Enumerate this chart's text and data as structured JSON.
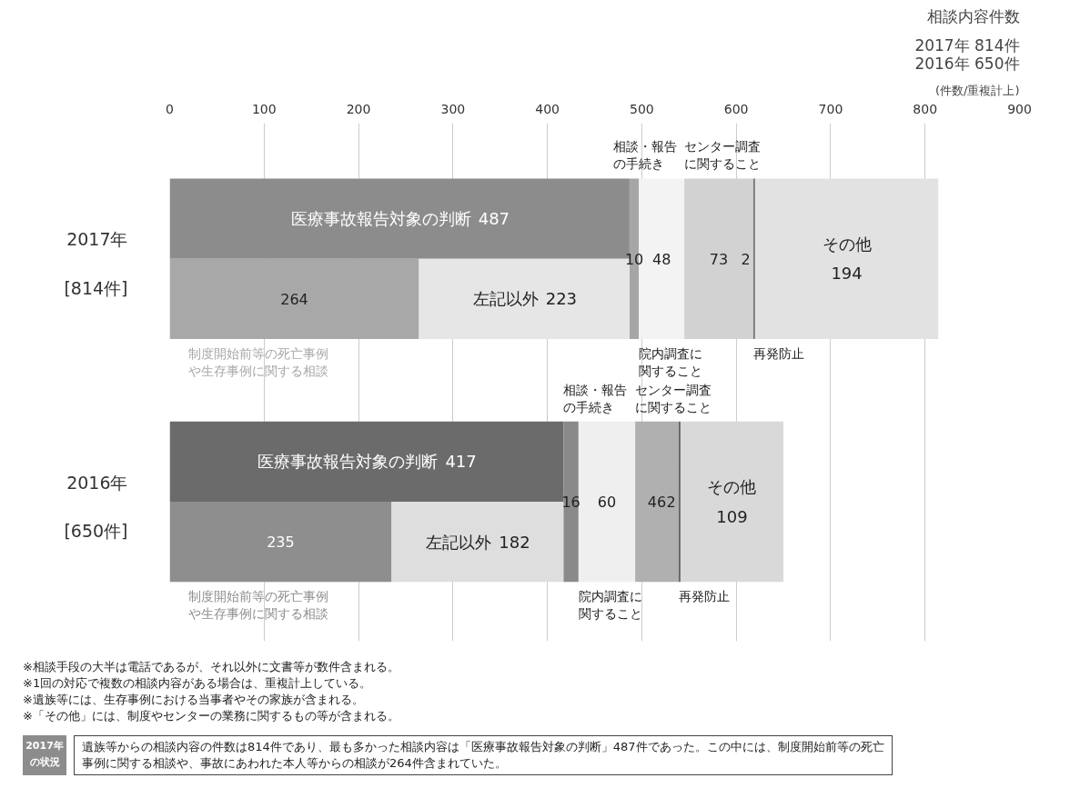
{
  "chart_data": {
    "type": "bar",
    "orientation": "horizontal",
    "title": "相談内容件数",
    "subtitle": "2017年 814件\n2016年 650件",
    "xlabel": "(件数/重複計上)",
    "categories": [
      "2017年 [814件]",
      "2016年 [650件]"
    ],
    "xlim": [
      0,
      900
    ],
    "xticks": [
      0,
      100,
      200,
      300,
      400,
      500,
      600,
      700,
      800,
      900
    ],
    "grid": "x",
    "legend": false,
    "data_labels": true,
    "series": [
      {
        "name": "医療事故報告対象の判断",
        "values": [
          487,
          417
        ],
        "base": [
          0,
          0
        ],
        "colors": [
          "#8c8c8c",
          "#6b6b6b"
        ]
      },
      {
        "name": "相談・報告の手続き",
        "values": [
          10,
          16
        ],
        "base": [
          487,
          417
        ],
        "colors": [
          "#a6a6a6",
          "#8a8a8a"
        ]
      },
      {
        "name": "院内調査に関すること",
        "values": [
          48,
          60
        ],
        "base": [
          497,
          433
        ],
        "colors": [
          "#f3f3f3",
          "#efefef"
        ]
      },
      {
        "name": "センター調査に関すること",
        "values": [
          73,
          46
        ],
        "base": [
          545,
          493
        ],
        "colors": [
          "#d2d2d2",
          "#b0b0b0"
        ]
      },
      {
        "name": "再発防止",
        "values": [
          2,
          2
        ],
        "base": [
          618,
          539
        ],
        "colors": [
          "#7a7a7a",
          "#666666"
        ]
      },
      {
        "name": "その他",
        "values": [
          194,
          109
        ],
        "base": [
          620,
          541
        ],
        "colors": [
          "#e2e2e2",
          "#d9d9d9"
        ]
      },
      {
        "name": "制度開始前等の死亡事例や生存事例に関する相談",
        "values": [
          264,
          235
        ],
        "base": [
          0,
          0
        ],
        "colors": [
          "#a8a8a8",
          "#8e8e8e"
        ]
      },
      {
        "name": "左記以外",
        "values": [
          223,
          182
        ],
        "base": [
          264,
          235
        ],
        "colors": [
          "#e6e6e6",
          "#dedede"
        ]
      }
    ],
    "annotations": [
      "※相談手段の大半は電話であるが、それ以外に文書等が数件含まれる。",
      "※1回の対応で複数の相談内容がある場合は、重複計上している。",
      "※遺族等には、生存事例における当事者やその家族が含まれる。",
      "※「その他」には、制度やセンターの業務に関するもの等が含まれる。",
      "2017年の状況",
      "遺族等からの相談内容の件数は814件であり、最も多かった相談内容は「医療事故報告対象の判断」487件であった。この中には、制度開始前等の死亡事例に関する相談や、事故にあわれた本人等からの相談が264件含まれていた。"
    ]
  }
}
